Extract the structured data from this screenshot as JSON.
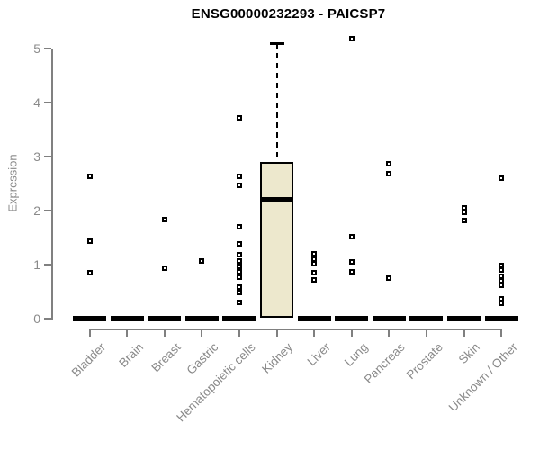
{
  "chart_data": {
    "type": "boxplot",
    "title": "ENSG00000232293 - PAICSP7",
    "ylabel": "Expression",
    "xlabel": "",
    "ylim": [
      0,
      5
    ],
    "yticks": [
      0,
      1,
      2,
      3,
      4,
      5
    ],
    "grid": false,
    "legend": false,
    "categories": [
      "Bladder",
      "Brain",
      "Breast",
      "Gastric",
      "Hematopoietic cells",
      "Kidney",
      "Liver",
      "Lung",
      "Pancreas",
      "Prostate",
      "Skin",
      "Unknown / Other"
    ],
    "boxes": [
      {
        "category": "Bladder",
        "median": 0,
        "q1": 0,
        "q3": 0,
        "whisker_low": 0,
        "whisker_high": 0,
        "outliers": [
          2.63,
          1.43,
          0.84
        ]
      },
      {
        "category": "Brain",
        "median": 0,
        "q1": 0,
        "q3": 0,
        "whisker_low": 0,
        "whisker_high": 0,
        "outliers": []
      },
      {
        "category": "Breast",
        "median": 0,
        "q1": 0,
        "q3": 0,
        "whisker_low": 0,
        "whisker_high": 0,
        "outliers": [
          1.83,
          0.93
        ]
      },
      {
        "category": "Gastric",
        "median": 0,
        "q1": 0,
        "q3": 0,
        "whisker_low": 0,
        "whisker_high": 0,
        "outliers": [
          1.06
        ]
      },
      {
        "category": "Hematopoietic cells",
        "median": 0,
        "q1": 0,
        "q3": 0,
        "whisker_low": 0,
        "whisker_high": 0,
        "outliers": [
          3.71,
          2.63,
          2.46,
          1.69,
          1.38,
          1.18,
          1.06,
          0.96,
          0.86,
          0.76,
          0.58,
          0.48,
          0.29
        ]
      },
      {
        "category": "Kidney",
        "median": 2.2,
        "q1": 0,
        "q3": 2.9,
        "whisker_low": 0,
        "whisker_high": 5.1,
        "outliers": []
      },
      {
        "category": "Liver",
        "median": 0,
        "q1": 0,
        "q3": 0,
        "whisker_low": 0,
        "whisker_high": 0,
        "outliers": [
          1.19,
          1.1,
          1.01,
          0.84,
          0.71
        ]
      },
      {
        "category": "Lung",
        "median": 0,
        "q1": 0,
        "q3": 0,
        "whisker_low": 0,
        "whisker_high": 0,
        "outliers": [
          5.18,
          1.51,
          1.04,
          0.86
        ]
      },
      {
        "category": "Pancreas",
        "median": 0,
        "q1": 0,
        "q3": 0,
        "whisker_low": 0,
        "whisker_high": 0,
        "outliers": [
          2.86,
          2.68,
          0.74
        ]
      },
      {
        "category": "Prostate",
        "median": 0,
        "q1": 0,
        "q3": 0,
        "whisker_low": 0,
        "whisker_high": 0,
        "outliers": []
      },
      {
        "category": "Skin",
        "median": 0,
        "q1": 0,
        "q3": 0,
        "whisker_low": 0,
        "whisker_high": 0,
        "outliers": [
          2.05,
          1.96,
          1.81
        ]
      },
      {
        "category": "Unknown / Other",
        "median": 0,
        "q1": 0,
        "q3": 0,
        "whisker_low": 0,
        "whisker_high": 0,
        "outliers": [
          2.6,
          0.98,
          0.89,
          0.78,
          0.69,
          0.61,
          0.36,
          0.28
        ]
      }
    ],
    "colors": {
      "box_fill": "#ede8cd",
      "box_border": "#000000",
      "point": "#000000",
      "axis": "#808080",
      "tick_label": "#8a8a8a",
      "title": "#000000",
      "background": "#ffffff"
    }
  }
}
